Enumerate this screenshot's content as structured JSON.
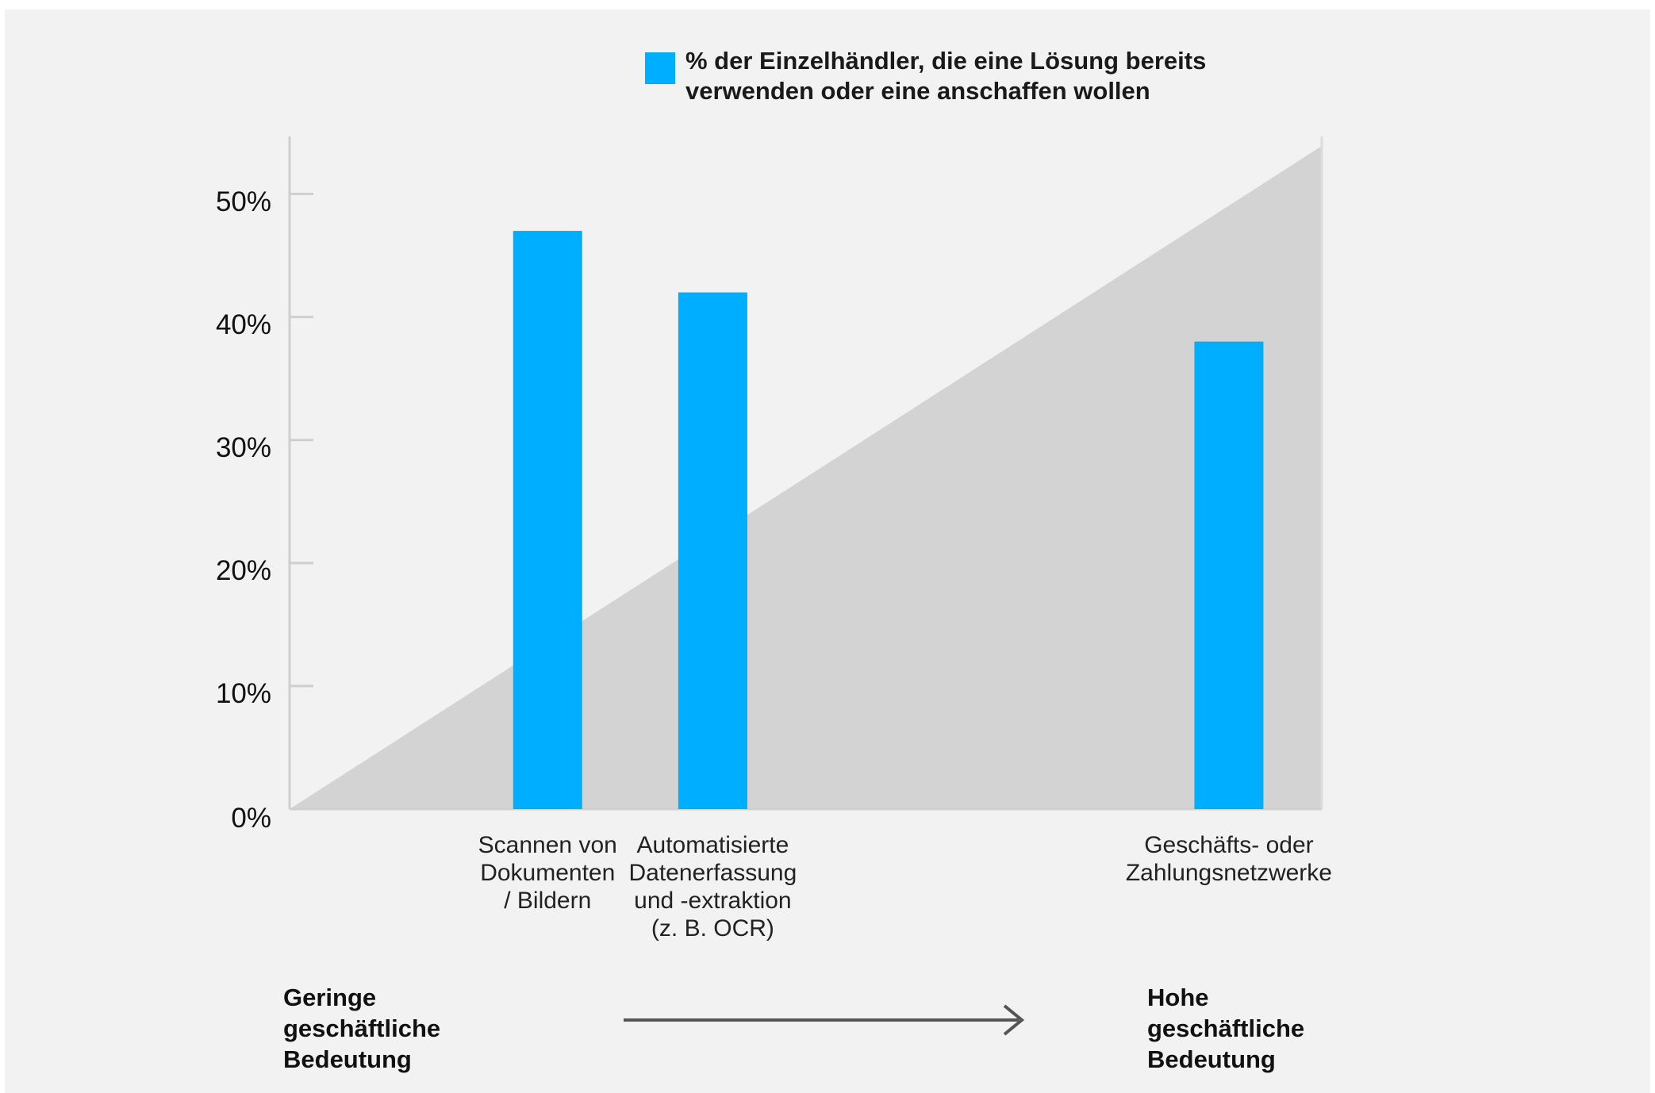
{
  "chart_data": {
    "type": "bar",
    "legend": [
      {
        "label": "% der Einzelhändler, die eine Lösung bereits verwenden oder eine anschaffen wollen",
        "color": "#00aeff"
      }
    ],
    "categories": [
      "Scannen von Dokumenten / Bildern",
      "Automatisierte Datenerfassung und -extraktion (z. B. OCR)",
      "Geschäfts- oder Zahlungsnetzwerke"
    ],
    "category_lines": [
      [
        "Scannen von",
        "Dokumenten",
        "/ Bildern"
      ],
      [
        "Automatisierte",
        "Datenerfassung",
        "und -extraktion",
        "(z. B. OCR)"
      ],
      [
        "Geschäfts- oder",
        "Zahlungsnetzwerke"
      ]
    ],
    "business_importance": [
      0.25,
      0.41,
      0.91
    ],
    "values": [
      47,
      42,
      38
    ],
    "ylim": [
      0,
      55
    ],
    "yticks": [
      "0%",
      "10%",
      "20%",
      "30%",
      "40%",
      "50%"
    ],
    "ytick_values": [
      0,
      10,
      20,
      30,
      40,
      50
    ],
    "bar_color": "#00aeff",
    "background_triangle_color": "#d3d3d3",
    "grid": false,
    "legend_position": "top"
  },
  "footer": {
    "low_lines": [
      "Geringe",
      "geschäftliche",
      "Bedeutung"
    ],
    "high_lines": [
      "Hohe",
      "geschäftliche",
      "Bedeutung"
    ]
  }
}
